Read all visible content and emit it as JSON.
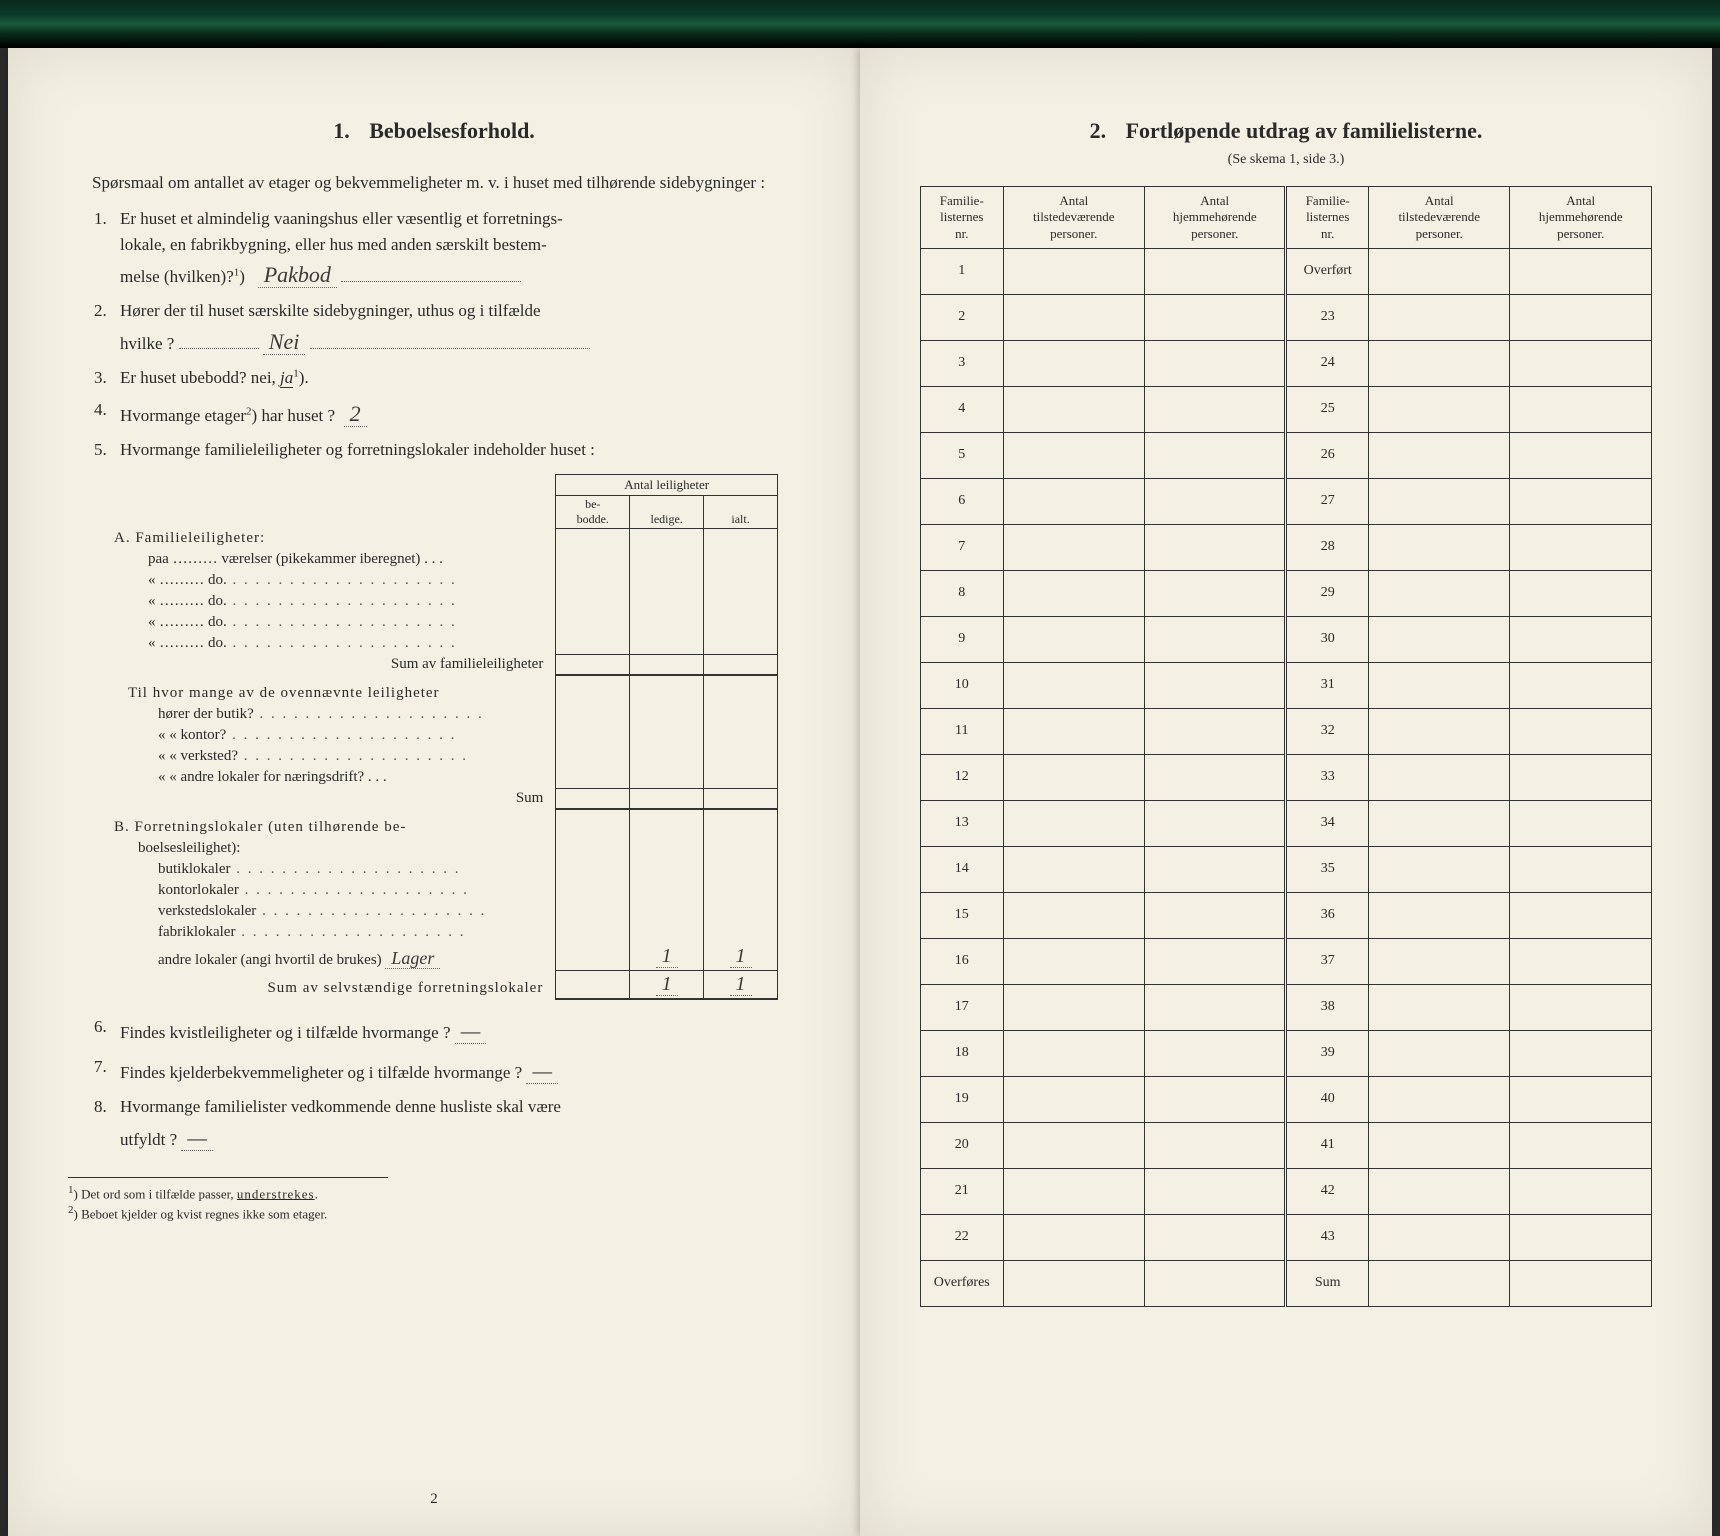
{
  "left": {
    "section_number": "1.",
    "section_title": "Beboelsesforhold.",
    "intro": "Spørsmaal om antallet av etager og bekvemmeligheter m. v. i huset med tilhørende sidebygninger :",
    "q1_a": "Er huset et almindelig vaaningshus eller væsentlig et forretnings-",
    "q1_b": "lokale, en fabrikbygning, eller hus med anden særskilt bestem-",
    "q1_c": "melse (hvilken)?",
    "q1_sup": "1",
    "q1_ans": "Pakbod",
    "q2_a": "Hører der til huset særskilte sidebygninger, uthus og i tilfælde",
    "q2_b": "hvilke ?",
    "q2_ans": "Nei",
    "q3": "Er huset ubebodd?  nei,  ",
    "q3_ja": "ja",
    "q3_sup": "1",
    "q4_a": "Hvormange etager",
    "q4_sup": "2",
    "q4_b": ") har huset ?",
    "q4_ans": "2",
    "q5": "Hvormange familieleiligheter og forretningslokaler indeholder huset :",
    "tbl": {
      "header_top": "Antal leiligheter",
      "h1": "be-\nbodde.",
      "h2": "ledige.",
      "h3": "ialt.",
      "A_title": "A. Familieleiligheter:",
      "A_rows": [
        "paa ……… værelser (pikekammer iberegnet) . . .",
        "«   ………   do.",
        "«   ………   do.",
        "«   ………   do.",
        "«   ………   do."
      ],
      "A_sum": "Sum av familieleiligheter",
      "mid_q": "Til hvor mange av de ovennævnte leiligheter",
      "mid_rows": [
        "hører der butik?",
        "«     «   kontor?",
        "«     «   verksted?",
        "«     «   andre lokaler for næringsdrift? . . ."
      ],
      "mid_sum": "Sum",
      "B_title": "B. Forretningslokaler (uten tilhørende be-",
      "B_title2": "boelsesleilighet):",
      "B_rows": [
        "butiklokaler",
        "kontorlokaler",
        "verkstedslokaler",
        "fabriklokaler"
      ],
      "B_andre": "andre lokaler (angi hvortil de brukes)",
      "B_andre_ans": "Lager",
      "B_andre_v2": "1",
      "B_andre_v3": "1",
      "B_sum": "Sum av selvstændige forretningslokaler",
      "B_sum_v2": "1",
      "B_sum_v3": "1"
    },
    "q6": "Findes kvistleiligheter og i tilfælde hvormange ?",
    "q6_ans": "—",
    "q7": "Findes kjelderbekvemmeligheter og i tilfælde hvormange ?",
    "q7_ans": "—",
    "q8_a": "Hvormange familielister vedkommende denne husliste skal være",
    "q8_b": "utfyldt ?",
    "q8_ans": "—",
    "fn1": "Det ord som i tilfælde passer, understrekes.",
    "fn2": "Beboet kjelder og kvist regnes ikke som etager.",
    "pagenum": "2"
  },
  "right": {
    "section_number": "2.",
    "section_title": "Fortløpende utdrag av familielisterne.",
    "sub": "(Se skema 1, side 3.)",
    "headers": {
      "c1": "Familie-\nlisternes\nnr.",
      "c2": "Antal\ntilstedeværende\npersoner.",
      "c3": "Antal\nhjemmehørende\npersoner.",
      "c4": "Familie-\nlisternes\nnr.",
      "c5": "Antal\ntilstedeværende\npersoner.",
      "c6": "Antal\nhjemmehørende\npersoner."
    },
    "left_rows": [
      "1",
      "2",
      "3",
      "4",
      "5",
      "6",
      "7",
      "8",
      "9",
      "10",
      "11",
      "12",
      "13",
      "14",
      "15",
      "16",
      "17",
      "18",
      "19",
      "20",
      "21",
      "22",
      "Overføres"
    ],
    "right_rows": [
      "Overført",
      "23",
      "24",
      "25",
      "26",
      "27",
      "28",
      "29",
      "30",
      "31",
      "32",
      "33",
      "34",
      "35",
      "36",
      "37",
      "38",
      "39",
      "40",
      "41",
      "42",
      "43",
      "Sum"
    ]
  },
  "colors": {
    "paper": "#f4f0e4",
    "ink": "#2a2a2a",
    "line": "#333333"
  }
}
